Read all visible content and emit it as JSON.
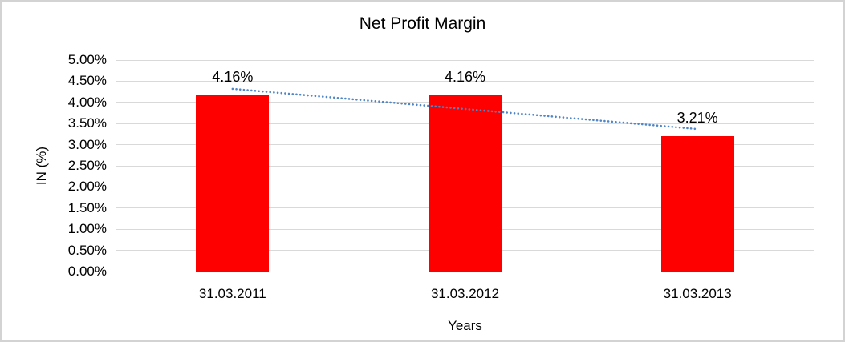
{
  "chart_data": {
    "type": "bar",
    "title": "Net Profit Margin",
    "xlabel": "Years",
    "ylabel": "IN (%)",
    "categories": [
      "31.03.2011",
      "31.03.2012",
      "31.03.2013"
    ],
    "values": [
      4.16,
      4.16,
      3.21
    ],
    "data_labels": [
      "4.16%",
      "4.16%",
      "3.21%"
    ],
    "ylim": [
      0,
      5
    ],
    "ytick_step": 0.5,
    "ytick_labels": [
      "0.00%",
      "0.50%",
      "1.00%",
      "1.50%",
      "2.00%",
      "2.50%",
      "3.00%",
      "3.50%",
      "4.00%",
      "4.50%",
      "5.00%"
    ],
    "grid": true,
    "legend": "none",
    "bar_color": "#FF0000",
    "gridline_color": "#D9D9D9",
    "background_color": "#FFFFFF",
    "border_color": "#D3D3D3",
    "text_color": "#000000",
    "trendline": {
      "type": "linear",
      "line_style": "dotted",
      "color": "#4E86C8",
      "start_value": 4.32,
      "end_value": 3.37
    }
  }
}
